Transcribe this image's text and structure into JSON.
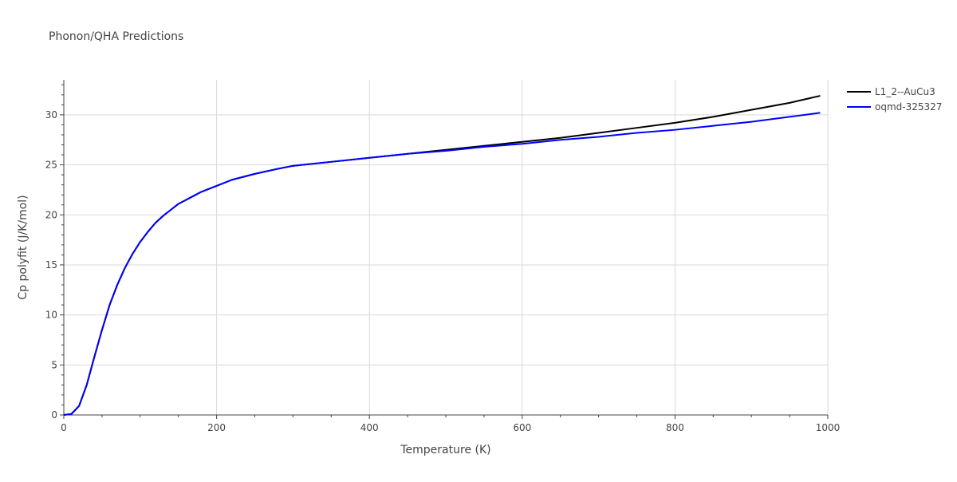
{
  "chart_data": {
    "type": "line",
    "title": "Phonon/QHA Predictions",
    "xlabel": "Temperature (K)",
    "ylabel": "Cp polyfit (J/K/mol)",
    "xlim": [
      0,
      1000
    ],
    "ylim": [
      0,
      33.5
    ],
    "x_ticks": [
      0,
      200,
      400,
      600,
      800,
      1000
    ],
    "y_ticks": [
      0,
      5,
      10,
      15,
      20,
      25,
      30
    ],
    "x_tick_labels": [
      "0",
      "200",
      "400",
      "600",
      "800",
      "1000"
    ],
    "y_tick_labels": [
      "0",
      "5",
      "10",
      "15",
      "20",
      "25",
      "30"
    ],
    "grid": true,
    "legend_position": "top-right",
    "series": [
      {
        "name": "L1_2--AuCu3",
        "color": "#000000",
        "x": [
          0,
          10,
          20,
          30,
          40,
          50,
          60,
          70,
          80,
          90,
          100,
          110,
          120,
          130,
          140,
          150,
          160,
          170,
          180,
          200,
          220,
          250,
          280,
          300,
          350,
          400,
          450,
          500,
          550,
          600,
          650,
          700,
          750,
          800,
          850,
          900,
          950,
          990
        ],
        "y": [
          0,
          0.1,
          0.9,
          3.0,
          5.8,
          8.5,
          11.0,
          13.0,
          14.7,
          16.1,
          17.3,
          18.3,
          19.2,
          19.9,
          20.5,
          21.1,
          21.5,
          21.9,
          22.3,
          22.9,
          23.5,
          24.1,
          24.6,
          24.9,
          25.3,
          25.7,
          26.1,
          26.5,
          26.9,
          27.3,
          27.7,
          28.2,
          28.7,
          29.2,
          29.8,
          30.5,
          31.2,
          31.9
        ]
      },
      {
        "name": "oqmd-325327",
        "color": "#0000ff",
        "x": [
          0,
          10,
          20,
          30,
          40,
          50,
          60,
          70,
          80,
          90,
          100,
          110,
          120,
          130,
          140,
          150,
          160,
          170,
          180,
          200,
          220,
          250,
          280,
          300,
          350,
          400,
          450,
          500,
          550,
          600,
          650,
          700,
          750,
          800,
          850,
          900,
          950,
          990
        ],
        "y": [
          0,
          0.1,
          0.9,
          3.0,
          5.8,
          8.5,
          11.0,
          13.0,
          14.7,
          16.1,
          17.3,
          18.3,
          19.2,
          19.9,
          20.5,
          21.1,
          21.5,
          21.9,
          22.3,
          22.9,
          23.5,
          24.1,
          24.6,
          24.9,
          25.3,
          25.7,
          26.1,
          26.4,
          26.8,
          27.1,
          27.5,
          27.8,
          28.2,
          28.5,
          28.9,
          29.3,
          29.8,
          30.2
        ]
      }
    ]
  }
}
